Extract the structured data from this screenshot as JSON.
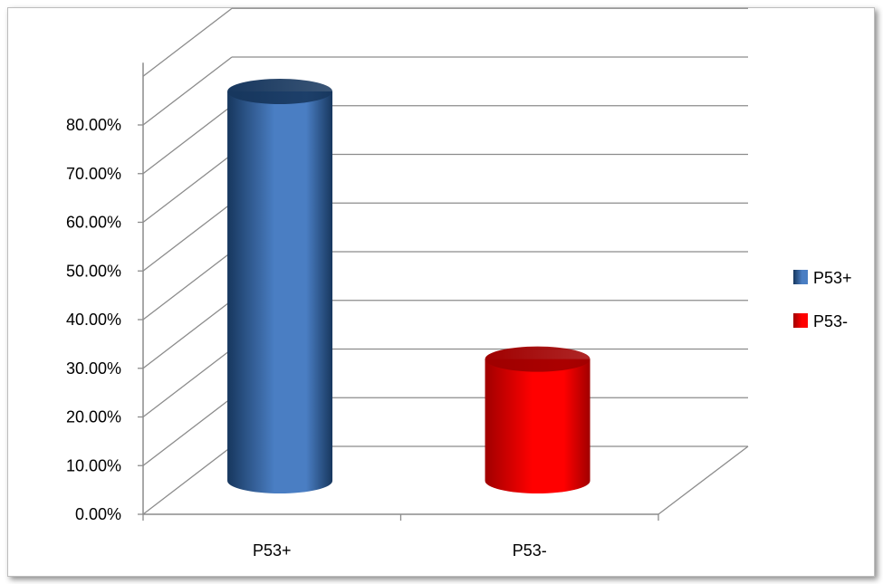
{
  "chart_data": {
    "type": "bar",
    "style": "3d-cylinder",
    "categories": [
      "P53+",
      "P53-"
    ],
    "series": [
      {
        "name": "P53+",
        "values": [
          0.8,
          null
        ],
        "color": "#4A7EC3",
        "color_dark": "#17375E"
      },
      {
        "name": "P53-",
        "values": [
          null,
          0.25
        ],
        "color": "#FF0000",
        "color_dark": "#A00000"
      }
    ],
    "y_ticks": [
      "0.00%",
      "10.00%",
      "20.00%",
      "30.00%",
      "40.00%",
      "50.00%",
      "60.00%",
      "70.00%",
      "80.00%"
    ],
    "ylim": [
      0,
      0.9
    ],
    "grid": true,
    "legend_position": "right"
  }
}
